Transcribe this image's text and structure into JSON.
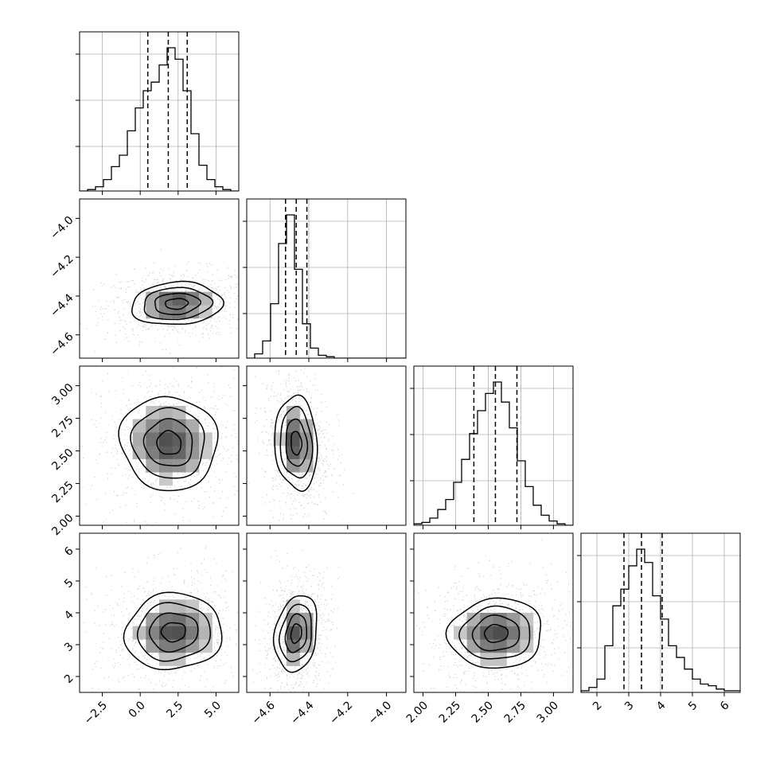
{
  "chart_data": {
    "type": "corner",
    "grid": true,
    "dimensions": [
      {
        "range": [
          -4.0,
          6.5
        ],
        "ticks": [
          -2.5,
          0.0,
          2.5,
          5.0
        ],
        "tick_labels": [
          "−2.5",
          "0.0",
          "2.5",
          "5.0"
        ],
        "quantiles": [
          0.5,
          1.85,
          3.1
        ],
        "histogram": [
          0,
          1,
          3,
          8,
          17,
          25,
          42,
          58,
          70,
          76,
          88,
          100,
          92,
          70,
          40,
          18,
          8,
          3,
          1,
          0
        ],
        "bins_range": [
          -4.0,
          6.5
        ]
      },
      {
        "range": [
          -4.72,
          -3.9
        ],
        "ticks": [
          -4.6,
          -4.4,
          -4.2,
          -4.0
        ],
        "tick_labels": [
          "−4.6",
          "−4.4",
          "−4.2",
          "−4.0"
        ],
        "quantiles": [
          -4.52,
          -4.465,
          -4.41
        ],
        "histogram": [
          0,
          3,
          12,
          38,
          80,
          100,
          62,
          24,
          7,
          2,
          1,
          0,
          0,
          0,
          0,
          0,
          0,
          0,
          0,
          0
        ],
        "bins_range": [
          -4.72,
          -3.9
        ]
      },
      {
        "range": [
          1.93,
          3.15
        ],
        "ticks": [
          2.0,
          2.25,
          2.5,
          2.75,
          3.0
        ],
        "tick_labels": [
          "2.00",
          "2.25",
          "2.50",
          "2.75",
          "3.00"
        ],
        "quantiles": [
          2.39,
          2.555,
          2.72
        ],
        "histogram": [
          1,
          2,
          5,
          11,
          18,
          30,
          46,
          64,
          80,
          92,
          100,
          86,
          68,
          45,
          27,
          14,
          7,
          3,
          1,
          0
        ],
        "bins_range": [
          1.93,
          3.15
        ]
      },
      {
        "range": [
          1.5,
          6.5
        ],
        "ticks": [
          2,
          3,
          4,
          5,
          6
        ],
        "tick_labels": [
          "2",
          "3",
          "4",
          "5",
          "6"
        ],
        "quantiles": [
          2.85,
          3.4,
          4.05
        ],
        "histogram": [
          1,
          3,
          8,
          28,
          52,
          62,
          76,
          86,
          78,
          58,
          44,
          28,
          21,
          14,
          8,
          5,
          4,
          2,
          1,
          1
        ],
        "bins_range": [
          1.5,
          6.5
        ]
      }
    ],
    "pairs": [
      {
        "row": 1,
        "col": 0,
        "center": [
          2.4,
          -4.44
        ],
        "sigma": [
          1.5,
          0.055
        ],
        "rho": 0.1
      },
      {
        "row": 2,
        "col": 0,
        "center": [
          1.9,
          2.56
        ],
        "sigma": [
          1.6,
          0.18
        ],
        "rho": -0.05
      },
      {
        "row": 2,
        "col": 1,
        "center": [
          -4.465,
          2.56
        ],
        "sigma": [
          0.055,
          0.18
        ],
        "rho": -0.1
      },
      {
        "row": 3,
        "col": 0,
        "center": [
          2.2,
          3.4
        ],
        "sigma": [
          1.6,
          0.6
        ],
        "rho": 0.05
      },
      {
        "row": 3,
        "col": 1,
        "center": [
          -4.465,
          3.35
        ],
        "sigma": [
          0.055,
          0.6
        ],
        "rho": 0.2
      },
      {
        "row": 3,
        "col": 2,
        "center": [
          2.56,
          3.35
        ],
        "sigma": [
          0.18,
          0.55
        ],
        "rho": 0.05
      }
    ],
    "contour_levels_sigma": [
      0.5,
      1.0,
      1.5,
      2.0
    ],
    "colors": {
      "line": "#000000",
      "grid": "#b0b0b0",
      "points": "#999999",
      "density_dark": "#1a1a1a"
    }
  }
}
